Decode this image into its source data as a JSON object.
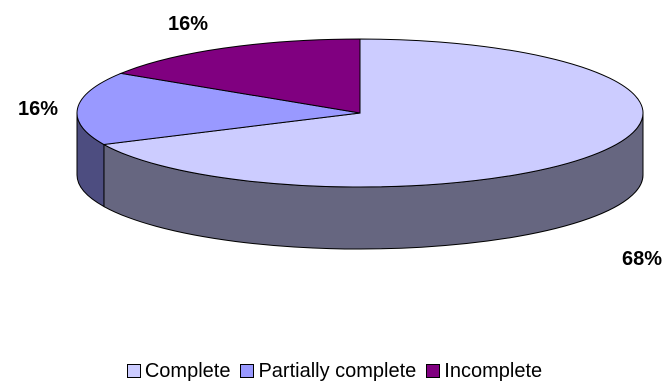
{
  "chart_data": {
    "type": "pie",
    "title": "",
    "categories": [
      "Complete",
      "Partially complete",
      "Incomplete"
    ],
    "values": [
      68,
      16,
      16
    ],
    "data_labels": [
      "68%",
      "16%",
      "16%"
    ],
    "colors": {
      "Complete": "#ccccff",
      "Partially complete": "#9999ff",
      "Incomplete": "#800080"
    },
    "side_colors": {
      "Complete": "#666680",
      "Partially complete": "#4d4d80"
    },
    "legend_position": "bottom",
    "style": "3d-pie"
  }
}
